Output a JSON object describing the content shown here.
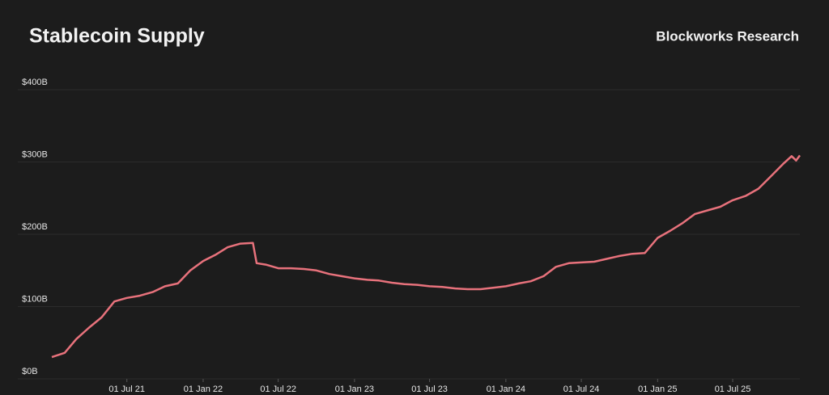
{
  "chart_data": {
    "type": "line",
    "title": "Stablecoin Supply",
    "source": "Blockworks Research",
    "x": [
      "2021-01-01",
      "2021-02-01",
      "2021-03-01",
      "2021-04-01",
      "2021-05-01",
      "2021-06-01",
      "2021-07-01",
      "2021-08-01",
      "2021-09-01",
      "2021-10-01",
      "2021-11-01",
      "2021-12-01",
      "2022-01-01",
      "2022-02-01",
      "2022-03-01",
      "2022-04-01",
      "2022-05-01",
      "2022-05-10",
      "2022-06-01",
      "2022-07-01",
      "2022-08-01",
      "2022-09-01",
      "2022-10-01",
      "2022-11-01",
      "2022-12-01",
      "2023-01-01",
      "2023-02-01",
      "2023-03-01",
      "2023-04-01",
      "2023-05-01",
      "2023-06-01",
      "2023-07-01",
      "2023-08-01",
      "2023-09-01",
      "2023-10-01",
      "2023-11-01",
      "2023-12-01",
      "2024-01-01",
      "2024-02-01",
      "2024-03-01",
      "2024-04-01",
      "2024-05-01",
      "2024-06-01",
      "2024-07-01",
      "2024-08-01",
      "2024-09-01",
      "2024-10-01",
      "2024-11-01",
      "2024-12-01",
      "2025-01-01",
      "2025-02-01",
      "2025-03-01",
      "2025-04-01",
      "2025-05-01",
      "2025-06-01",
      "2025-07-01",
      "2025-08-01",
      "2025-09-01",
      "2025-10-01",
      "2025-11-01",
      "2025-11-20",
      "2025-12-01",
      "2025-12-10"
    ],
    "series": [
      {
        "name": "Stablecoin Supply",
        "color": "#e8727c",
        "values": [
          30,
          36,
          55,
          71,
          85,
          107,
          112,
          115,
          120,
          128,
          132,
          150,
          163,
          172,
          182,
          187,
          188,
          160,
          158,
          153,
          153,
          152,
          150,
          145,
          142,
          139,
          137,
          136,
          133,
          131,
          130,
          128,
          127,
          125,
          124,
          124,
          126,
          128,
          132,
          135,
          142,
          155,
          160,
          161,
          162,
          166,
          170,
          173,
          174,
          195,
          205,
          215,
          228,
          233,
          238,
          247,
          253,
          263,
          280,
          298,
          308,
          302,
          309
        ]
      }
    ],
    "xlim": [
      "2021-01-01",
      "2025-12-10"
    ],
    "xticks": [
      {
        "value": "2021-07-01",
        "label": "01 Jul 21"
      },
      {
        "value": "2022-01-01",
        "label": "01 Jan 22"
      },
      {
        "value": "2022-07-01",
        "label": "01 Jul 22"
      },
      {
        "value": "2023-01-01",
        "label": "01 Jan 23"
      },
      {
        "value": "2023-07-01",
        "label": "01 Jul 23"
      },
      {
        "value": "2024-01-01",
        "label": "01 Jan 24"
      },
      {
        "value": "2024-07-01",
        "label": "01 Jul 24"
      },
      {
        "value": "2025-01-01",
        "label": "01 Jan 25"
      },
      {
        "value": "2025-07-01",
        "label": "01 Jul 25"
      }
    ],
    "ylim": [
      0,
      400
    ],
    "yticks": [
      {
        "value": 0,
        "label": "$0B"
      },
      {
        "value": 100,
        "label": "$100B"
      },
      {
        "value": 200,
        "label": "$200B"
      },
      {
        "value": 300,
        "label": "$300B"
      },
      {
        "value": 400,
        "label": "$400B"
      }
    ],
    "grid": true
  }
}
